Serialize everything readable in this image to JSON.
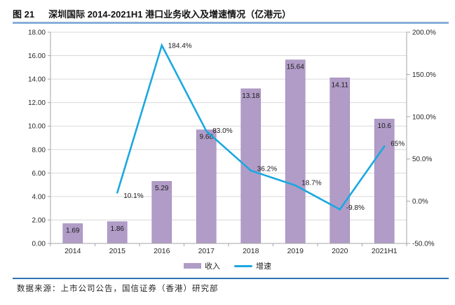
{
  "figure": {
    "tag": "图 21",
    "title": "深圳国际 2014-2021H1 港口业务收入及增速情况（亿港元）"
  },
  "footer": {
    "source": "数据来源：上市公司公告，国信证券（香港）研究部"
  },
  "colors": {
    "bar": "#b19cc7",
    "bar_border": "#9d86b8",
    "line": "#1ba8e0",
    "grid": "#d9d9d9",
    "axis": "#a6a6a6",
    "tick_label": "#262626",
    "data_label": "#1a1a1a",
    "title_rule": "#6d9bd1",
    "footer_rule": "#2e74b5"
  },
  "chart_data": {
    "type": "bar+line",
    "title": "深圳国际 2014-2021H1 港口业务收入及增速情况（亿港元）",
    "categories": [
      "2014",
      "2015",
      "2016",
      "2017",
      "2018",
      "2019",
      "2020",
      "2021H1"
    ],
    "series": [
      {
        "name": "收入",
        "type": "bar",
        "axis": "left",
        "values": [
          1.69,
          1.86,
          5.29,
          9.68,
          13.18,
          15.64,
          14.11,
          10.6
        ],
        "labels": [
          "1.69",
          "1.86",
          "5.29",
          "9.68",
          "13.18",
          "15.64",
          "14.11",
          "10.6"
        ]
      },
      {
        "name": "增速",
        "type": "line",
        "axis": "right",
        "values": [
          null,
          10.1,
          184.4,
          83.0,
          36.2,
          18.7,
          -9.8,
          65
        ],
        "labels": [
          "",
          "10.1%",
          "184.4%",
          "83.0%",
          "36.2%",
          "18.7%",
          "-9.8%",
          "65%"
        ]
      }
    ],
    "left_axis": {
      "min": 0,
      "max": 18,
      "step": 2,
      "tick_labels": [
        "0.00",
        "2.00",
        "4.00",
        "6.00",
        "8.00",
        "10.00",
        "12.00",
        "14.00",
        "16.00",
        "18.00"
      ]
    },
    "right_axis": {
      "min": -50,
      "max": 200,
      "step": 50,
      "tick_labels": [
        "-50.0%",
        "0.0%",
        "50.0%",
        "100.0%",
        "150.0%",
        "200.0%"
      ]
    },
    "grid": true,
    "legend_position": "bottom"
  }
}
